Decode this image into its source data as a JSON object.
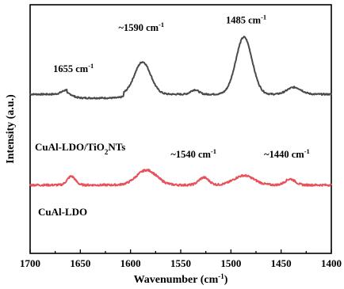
{
  "chart_data": {
    "type": "line",
    "xlabel": "Wavenumber (cm",
    "xlabel_sup": "-1",
    "xlabel_tail": ")",
    "ylabel": "Intensity (a.u.)",
    "xlim": [
      1700,
      1400
    ],
    "x_reversed": true,
    "x_ticks": [
      1700,
      1650,
      1600,
      1550,
      1500,
      1450,
      1400
    ],
    "ylim": [
      0,
      1
    ],
    "y_ticks_shown": false,
    "grid": false,
    "series": [
      {
        "name": "CuAl-LDO/TiO2NTs",
        "label_parts": [
          "CuAl-LDO/TiO",
          "2",
          "NTs"
        ],
        "color": "#4a4a4a",
        "baseline": 0.64,
        "noise": 0.003,
        "peaks": [
          {
            "x": 1663,
            "height": 0.018,
            "width": 5
          },
          {
            "x": 1588,
            "height": 0.13,
            "width": 8
          },
          {
            "x": 1536,
            "height": 0.018,
            "width": 4
          },
          {
            "x": 1487,
            "height": 0.23,
            "width": 8
          },
          {
            "x": 1437,
            "height": 0.028,
            "width": 7
          }
        ],
        "steps": [
          {
            "from": 1663,
            "to": 1607,
            "offset": -0.015
          }
        ]
      },
      {
        "name": "CuAl-LDO",
        "label_parts": [
          "CuAl-LDO"
        ],
        "color": "#e8505a",
        "baseline": 0.275,
        "noise": 0.004,
        "peaks": [
          {
            "x": 1659,
            "height": 0.035,
            "width": 4
          },
          {
            "x": 1584,
            "height": 0.06,
            "width": 10
          },
          {
            "x": 1527,
            "height": 0.03,
            "width": 5
          },
          {
            "x": 1487,
            "height": 0.038,
            "width": 10
          },
          {
            "x": 1441,
            "height": 0.024,
            "width": 5
          }
        ],
        "steps": []
      }
    ],
    "annotations": [
      {
        "text": "1655 cm",
        "sup": "-1",
        "x": 1677,
        "y": 0.73
      },
      {
        "text": "~1590 cm",
        "sup": "-1",
        "x": 1612,
        "y": 0.895
      },
      {
        "text": "1485 cm",
        "sup": "-1",
        "x": 1505,
        "y": 0.925
      },
      {
        "text": "~1540 cm",
        "sup": "-1",
        "x": 1560,
        "y": 0.385
      },
      {
        "text": "~1440 cm",
        "sup": "-1",
        "x": 1467,
        "y": 0.385
      }
    ]
  }
}
